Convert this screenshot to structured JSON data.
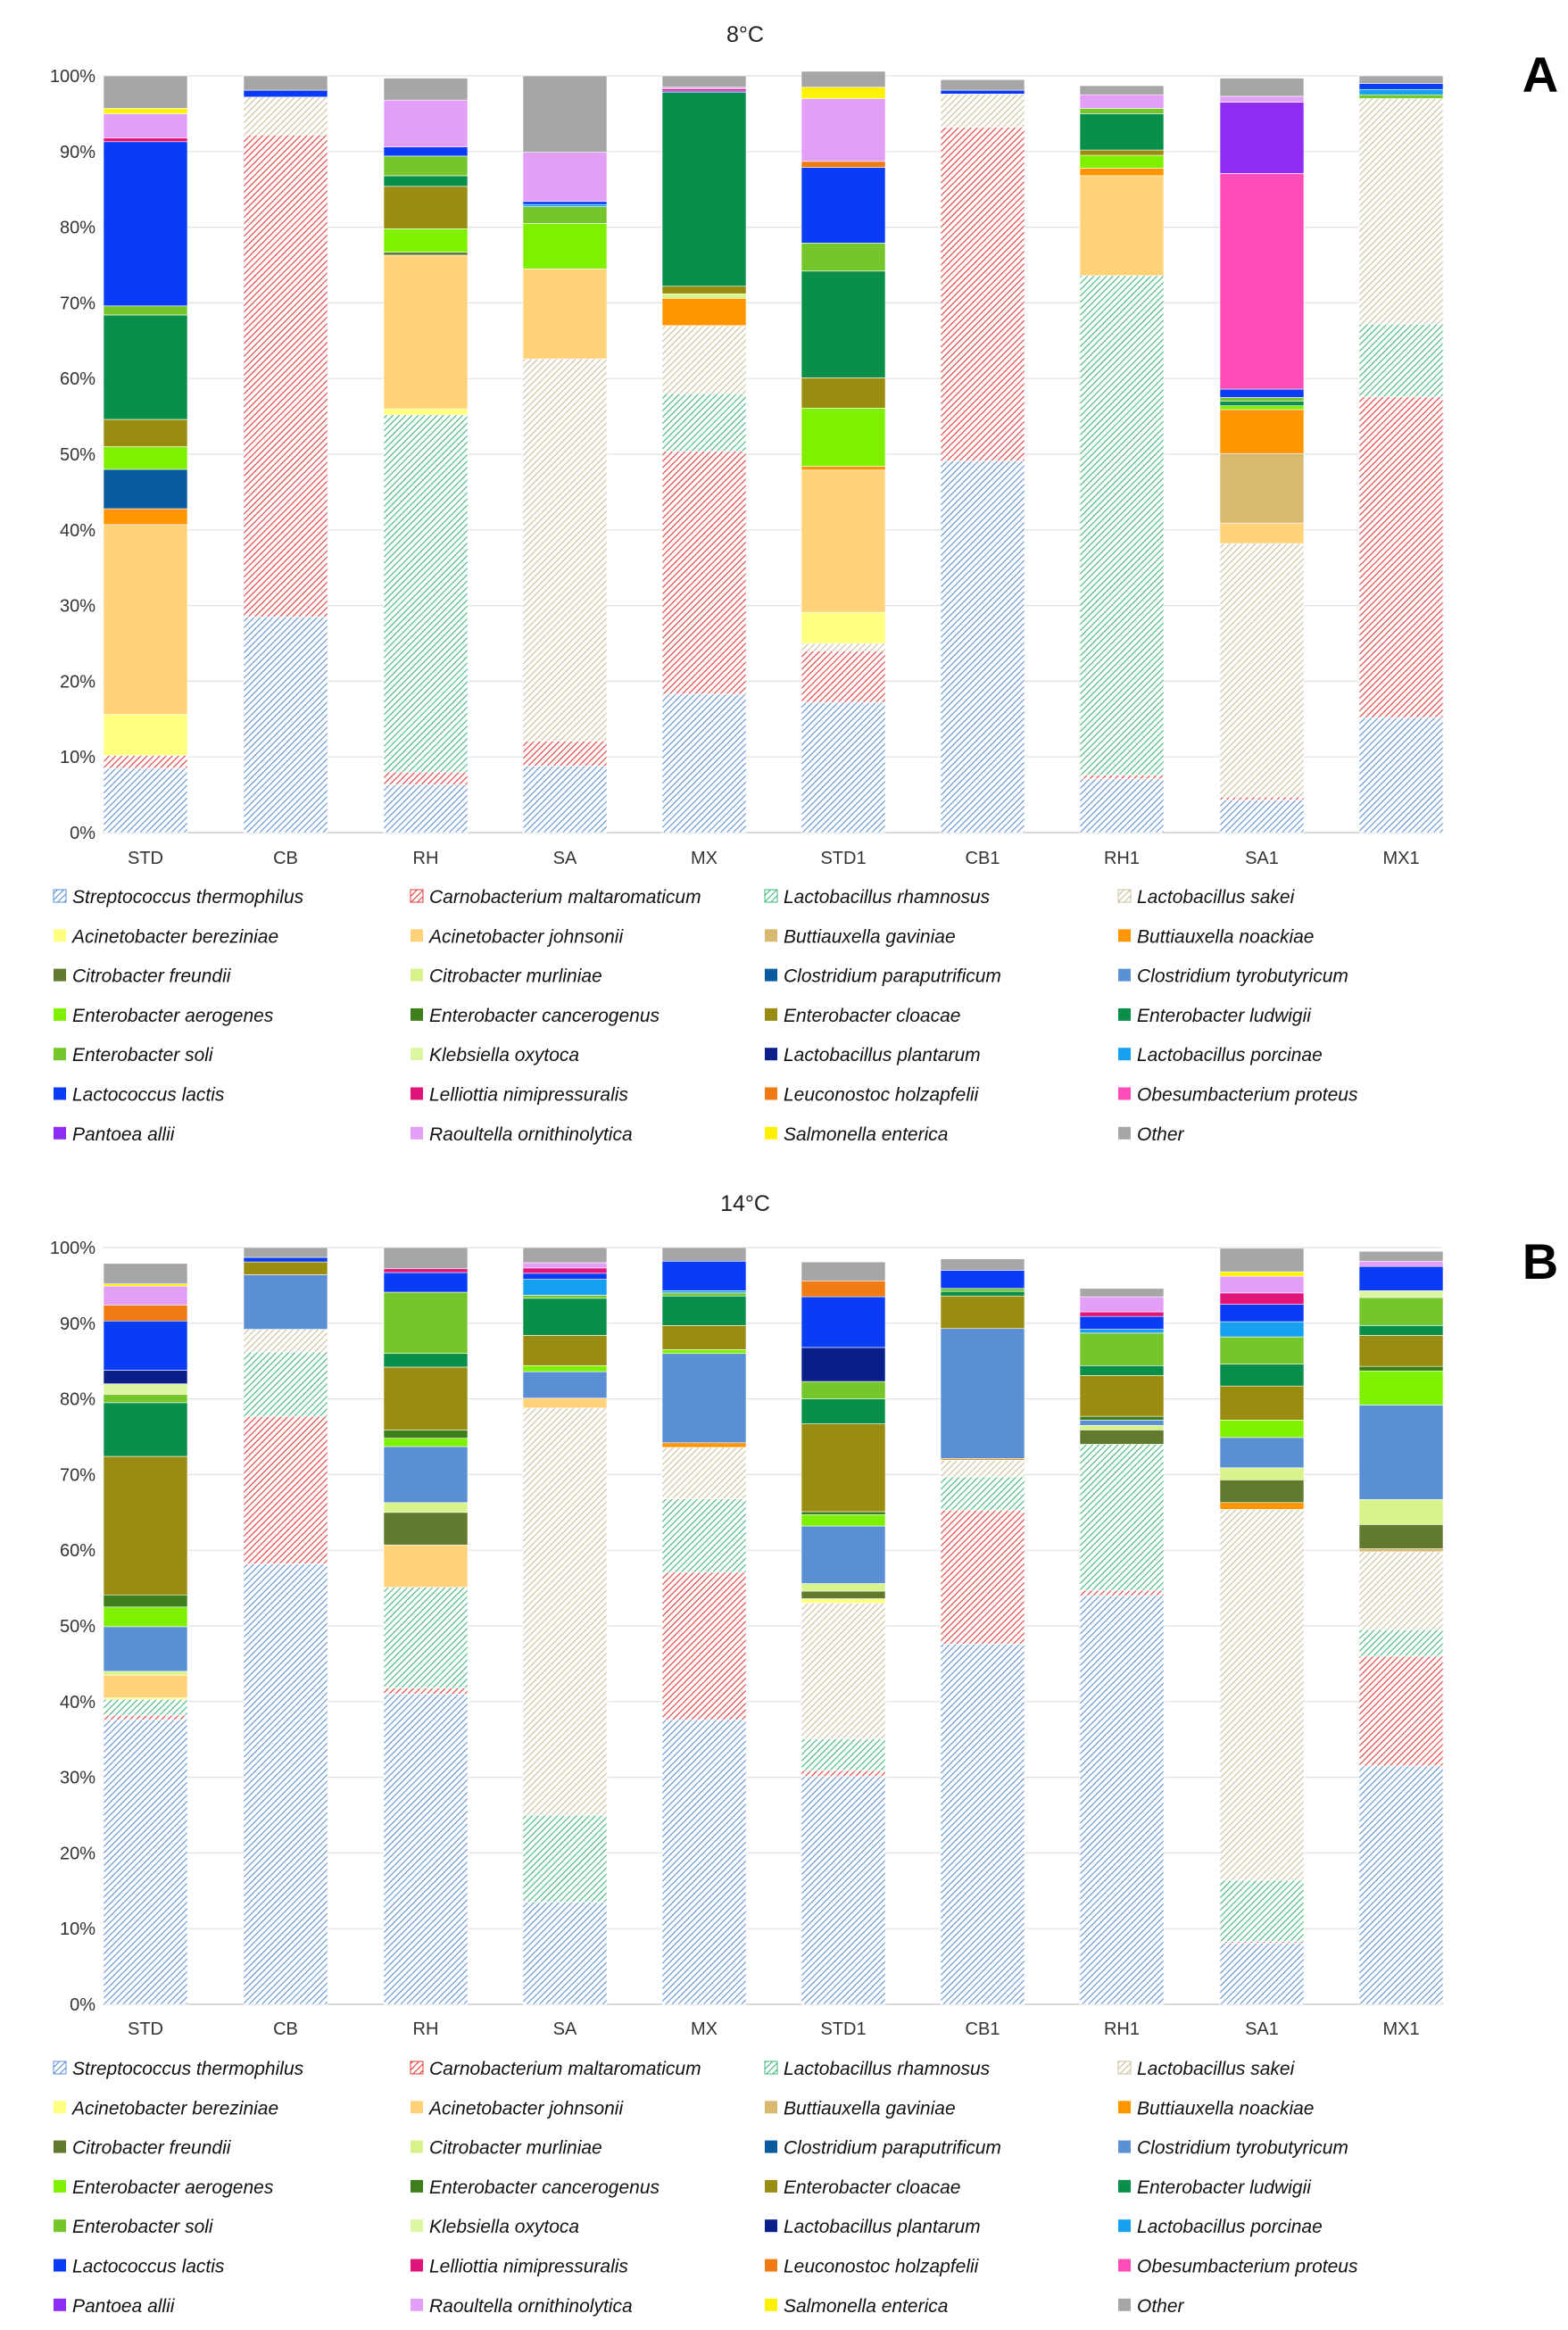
{
  "chart_data": [
    {
      "type": "bar",
      "panel_label": "A",
      "title": "8°C",
      "stacked": true,
      "categories": [
        "STD",
        "CB",
        "RH",
        "SA",
        "MX",
        "STD1",
        "CB1",
        "RH1",
        "SA1",
        "MX1"
      ],
      "yticks": [
        "0%",
        "10%",
        "20%",
        "30%",
        "40%",
        "50%",
        "60%",
        "70%",
        "80%",
        "90%",
        "100%"
      ],
      "ylim": [
        0,
        100
      ],
      "ylabel": "",
      "xlabel": "",
      "grid": true,
      "series": [
        {
          "name": "Streptococcus thermophilus",
          "values": [
            8.5,
            28.5,
            6.3,
            8.8,
            18.3,
            17.2,
            49.1,
            7.1,
            4.3,
            15.2
          ]
        },
        {
          "name": "Carnobacterium maltaromaticum",
          "values": [
            1.7,
            63.7,
            1.7,
            3.3,
            32.1,
            6.8,
            44.1,
            0.5,
            0.4,
            42.4
          ]
        },
        {
          "name": "Lactobacillus rhamnosus",
          "values": [
            0,
            0,
            47.2,
            0,
            7.6,
            0,
            0,
            66.0,
            0,
            9.6
          ]
        },
        {
          "name": "Lactobacillus sakei",
          "values": [
            0,
            5.0,
            0,
            50.5,
            9.0,
            1.0,
            4.4,
            0,
            33.5,
            29.8
          ]
        },
        {
          "name": "Acinetobacter bereziniae",
          "values": [
            5.4,
            0,
            0.8,
            0,
            0,
            4.1,
            0,
            0,
            0,
            0
          ]
        },
        {
          "name": "Acinetobacter johnsonii",
          "values": [
            25.1,
            0,
            20.3,
            11.9,
            0,
            18.8,
            0,
            13.2,
            2.7,
            0
          ]
        },
        {
          "name": "Buttiauxella gaviniae",
          "values": [
            0,
            0,
            0,
            0,
            0,
            0,
            0,
            0,
            9.2,
            0
          ]
        },
        {
          "name": "Buttiauxella noackiae",
          "values": [
            2.1,
            0,
            0,
            0,
            3.6,
            0.5,
            0,
            1.0,
            5.8,
            0
          ]
        },
        {
          "name": "Citrobacter freundii",
          "values": [
            0,
            0,
            0.4,
            0,
            0,
            0,
            0,
            0,
            0,
            0
          ]
        },
        {
          "name": "Citrobacter murliniae",
          "values": [
            0,
            0,
            0,
            0,
            0.6,
            0,
            0,
            0,
            0,
            0
          ]
        },
        {
          "name": "Clostridium paraputrificum",
          "values": [
            5.2,
            0,
            0,
            0,
            0,
            0,
            0,
            0,
            0,
            0
          ]
        },
        {
          "name": "Clostridium tyrobutyricum",
          "values": [
            0,
            0,
            0,
            0,
            0,
            0,
            0,
            0,
            0,
            0
          ]
        },
        {
          "name": "Enterobacter aerogenes",
          "values": [
            3.0,
            0,
            3.1,
            6.0,
            0,
            7.7,
            0,
            1.7,
            0.5,
            0
          ]
        },
        {
          "name": "Enterobacter cancerogenus",
          "values": [
            0,
            0,
            0,
            0,
            0,
            0,
            0,
            0,
            0,
            0
          ]
        },
        {
          "name": "Enterobacter cloacae",
          "values": [
            3.6,
            0,
            5.6,
            0,
            1.0,
            4.0,
            0,
            0.7,
            0,
            0
          ]
        },
        {
          "name": "Enterobacter ludwigii",
          "values": [
            13.8,
            0,
            1.4,
            0,
            25.6,
            14.1,
            0,
            4.8,
            0.6,
            0
          ]
        },
        {
          "name": "Enterobacter soli",
          "values": [
            1.2,
            0,
            2.6,
            2.2,
            0,
            3.7,
            0,
            0.7,
            0.5,
            0.5
          ]
        },
        {
          "name": "Klebsiella oxytoca",
          "values": [
            0,
            0,
            0,
            0,
            0,
            0,
            0,
            0,
            0,
            0
          ]
        },
        {
          "name": "Lactobacillus plantarum",
          "values": [
            0,
            0,
            0,
            0,
            0,
            0,
            0,
            0,
            0,
            0
          ]
        },
        {
          "name": "Lactobacillus porcinae",
          "values": [
            0,
            0,
            0,
            0.3,
            0,
            0,
            0,
            0,
            0,
            0.7
          ]
        },
        {
          "name": "Lactococcus lactis",
          "values": [
            21.7,
            0.9,
            1.2,
            0.4,
            0.2,
            10.0,
            0.5,
            0,
            1.1,
            0.8
          ]
        },
        {
          "name": "Lelliottia nimipressuralis",
          "values": [
            0.5,
            0,
            0,
            0,
            0.3,
            0,
            0,
            0,
            0,
            0
          ]
        },
        {
          "name": "Leuconostoc holzapfelii",
          "values": [
            0,
            0,
            0,
            0,
            0,
            0.8,
            0,
            0,
            0,
            0
          ]
        },
        {
          "name": "Obesumbacterium proteus",
          "values": [
            0,
            0,
            0,
            0,
            0,
            0,
            0,
            0,
            28.5,
            0
          ]
        },
        {
          "name": "Pantoea allii",
          "values": [
            0,
            0,
            0,
            0,
            0,
            0,
            0,
            0,
            9.4,
            0
          ]
        },
        {
          "name": "Raoultella ornithinolytica",
          "values": [
            3.2,
            0,
            6.2,
            6.5,
            0.2,
            8.3,
            0,
            1.8,
            0.8,
            0
          ]
        },
        {
          "name": "Salmonella enterica",
          "values": [
            0.7,
            0,
            0,
            0,
            0,
            1.5,
            0,
            0,
            0,
            0
          ]
        },
        {
          "name": "Other",
          "values": [
            4.3,
            1.9,
            2.9,
            10.1,
            1.5,
            2.1,
            1.4,
            1.2,
            2.4,
            1.0
          ]
        }
      ]
    },
    {
      "type": "bar",
      "panel_label": "B",
      "title": "14°C",
      "stacked": true,
      "categories": [
        "STD",
        "CB",
        "RH",
        "SA",
        "MX",
        "STD1",
        "CB1",
        "RH1",
        "SA1",
        "MX1"
      ],
      "yticks": [
        "0%",
        "10%",
        "20%",
        "30%",
        "40%",
        "50%",
        "60%",
        "70%",
        "80%",
        "90%",
        "100%"
      ],
      "ylim": [
        0,
        100
      ],
      "ylabel": "",
      "xlabel": "",
      "grid": true,
      "series": [
        {
          "name": "Streptococcus thermophilus",
          "values": [
            37.6,
            58.2,
            41.0,
            13.5,
            37.6,
            30.1,
            47.6,
            54.0,
            8.1,
            31.5
          ]
        },
        {
          "name": "Carnobacterium maltaromaticum",
          "values": [
            0.6,
            19.5,
            0.8,
            0,
            19.5,
            0.8,
            17.7,
            0.7,
            0.2,
            14.5
          ]
        },
        {
          "name": "Lactobacillus rhamnosus",
          "values": [
            2.1,
            8.5,
            13.3,
            11.5,
            9.7,
            4.2,
            4.4,
            19.3,
            8.1,
            3.5
          ]
        },
        {
          "name": "Lactobacillus sakei",
          "values": [
            0,
            3.0,
            0,
            53.8,
            6.8,
            17.9,
            2.2,
            0,
            49.0,
            10.3
          ]
        },
        {
          "name": "Acinetobacter bereziniae",
          "values": [
            0.2,
            0,
            0,
            0,
            0,
            0.6,
            0,
            0,
            0,
            0
          ]
        },
        {
          "name": "Acinetobacter johnsonii",
          "values": [
            3.0,
            0,
            5.6,
            1.3,
            0,
            0,
            0,
            0,
            0,
            0
          ]
        },
        {
          "name": "Buttiauxella gaviniae",
          "values": [
            0,
            0,
            0,
            0,
            0,
            0,
            0,
            0,
            0,
            0.4
          ]
        },
        {
          "name": "Buttiauxella noackiae",
          "values": [
            0,
            0,
            0,
            0,
            0.6,
            0,
            0.2,
            0,
            0.9,
            0
          ]
        },
        {
          "name": "Citrobacter freundii",
          "values": [
            0,
            0,
            4.3,
            0,
            0,
            1.0,
            0,
            1.9,
            3.0,
            3.2
          ]
        },
        {
          "name": "Citrobacter murliniae",
          "values": [
            0.5,
            0,
            1.3,
            0,
            0,
            1.0,
            0,
            0.6,
            1.6,
            3.3
          ]
        },
        {
          "name": "Clostridium paraputrificum",
          "values": [
            0,
            0,
            0,
            0,
            0,
            0,
            0,
            0,
            0,
            0
          ]
        },
        {
          "name": "Clostridium tyrobutyricum",
          "values": [
            5.9,
            7.2,
            7.4,
            3.5,
            11.8,
            7.6,
            17.2,
            0.7,
            4.0,
            12.5
          ]
        },
        {
          "name": "Enterobacter aerogenes",
          "values": [
            2.6,
            0,
            1.1,
            0.8,
            0.5,
            1.5,
            0,
            0,
            2.3,
            4.5
          ]
        },
        {
          "name": "Enterobacter cancerogenus",
          "values": [
            1.6,
            0,
            1.1,
            0,
            0,
            0.4,
            0,
            0.5,
            0,
            0.6
          ]
        },
        {
          "name": "Enterobacter cloacae",
          "values": [
            18.3,
            1.7,
            8.3,
            4.0,
            3.2,
            11.6,
            4.3,
            5.4,
            4.5,
            4.1
          ]
        },
        {
          "name": "Enterobacter ludwigii",
          "values": [
            7.1,
            0,
            1.8,
            4.9,
            3.9,
            3.3,
            0.6,
            1.3,
            2.9,
            1.3
          ]
        },
        {
          "name": "Enterobacter soli",
          "values": [
            1.1,
            0,
            8.1,
            0.4,
            0.4,
            2.3,
            0.4,
            4.3,
            3.6,
            3.7
          ]
        },
        {
          "name": "Klebsiella oxytoca",
          "values": [
            1.4,
            0,
            0,
            0,
            0,
            0,
            0,
            0,
            0,
            0.9
          ]
        },
        {
          "name": "Lactobacillus plantarum",
          "values": [
            1.8,
            0,
            0,
            0,
            0,
            4.5,
            0,
            0,
            0,
            0
          ]
        },
        {
          "name": "Lactobacillus porcinae",
          "values": [
            0,
            0,
            0,
            2.1,
            0.3,
            0,
            0,
            0.5,
            2.0,
            0
          ]
        },
        {
          "name": "Lactococcus lactis",
          "values": [
            6.5,
            0.6,
            2.6,
            0.8,
            3.9,
            6.7,
            2.4,
            1.7,
            2.3,
            3.2
          ]
        },
        {
          "name": "Lelliottia nimipressuralis",
          "values": [
            0,
            0,
            0.5,
            0.7,
            0,
            0,
            0,
            0.6,
            1.5,
            0
          ]
        },
        {
          "name": "Leuconostoc holzapfelii",
          "values": [
            2.1,
            0,
            0,
            0,
            0,
            2.1,
            0,
            0,
            0,
            0
          ]
        },
        {
          "name": "Obesumbacterium proteus",
          "values": [
            0,
            0,
            0,
            0,
            0,
            0,
            0,
            0,
            0,
            0
          ]
        },
        {
          "name": "Pantoea allii",
          "values": [
            0,
            0,
            0,
            0,
            0,
            0,
            0,
            0,
            0,
            0
          ]
        },
        {
          "name": "Raoultella ornithinolytica",
          "values": [
            2.5,
            0,
            0,
            0.7,
            0,
            0,
            0,
            2.0,
            2.2,
            0.7
          ]
        },
        {
          "name": "Salmonella enterica",
          "values": [
            0.3,
            0,
            0,
            0,
            0,
            0,
            0,
            0,
            0.6,
            0
          ]
        },
        {
          "name": "Other",
          "values": [
            2.7,
            1.3,
            2.8,
            2.0,
            1.8,
            2.5,
            1.5,
            1.1,
            3.1,
            1.3
          ]
        }
      ]
    }
  ],
  "series_styles": [
    {
      "color": "#5b8fd6",
      "hatch": true
    },
    {
      "color": "#e23b3b",
      "hatch": true
    },
    {
      "color": "#3cb878",
      "hatch": true
    },
    {
      "color": "#c9bc98",
      "hatch": true
    },
    {
      "color": "#ffff80",
      "hatch": false
    },
    {
      "color": "#ffd27a",
      "hatch": false
    },
    {
      "color": "#d9b970",
      "hatch": false
    },
    {
      "color": "#ff9500",
      "hatch": false
    },
    {
      "color": "#617a2e",
      "hatch": false
    },
    {
      "color": "#d9f38a",
      "hatch": false
    },
    {
      "color": "#0a5ca0",
      "hatch": false
    },
    {
      "color": "#5a8fd4",
      "hatch": false
    },
    {
      "color": "#7ff000",
      "hatch": false
    },
    {
      "color": "#3e7f1c",
      "hatch": false
    },
    {
      "color": "#9a8c10",
      "hatch": false
    },
    {
      "color": "#0a8f4a",
      "hatch": false
    },
    {
      "color": "#74c62a",
      "hatch": false
    },
    {
      "color": "#dcf5a0",
      "hatch": false
    },
    {
      "color": "#0a1f8a",
      "hatch": false
    },
    {
      "color": "#18a0f0",
      "hatch": false
    },
    {
      "color": "#0a3cf5",
      "hatch": false
    },
    {
      "color": "#e0157a",
      "hatch": false
    },
    {
      "color": "#f07a14",
      "hatch": false
    },
    {
      "color": "#ff4db8",
      "hatch": false
    },
    {
      "color": "#8c2cf5",
      "hatch": false
    },
    {
      "color": "#e39ef5",
      "hatch": false
    },
    {
      "color": "#fff200",
      "hatch": false
    },
    {
      "color": "#a6a6a6",
      "hatch": false
    }
  ]
}
